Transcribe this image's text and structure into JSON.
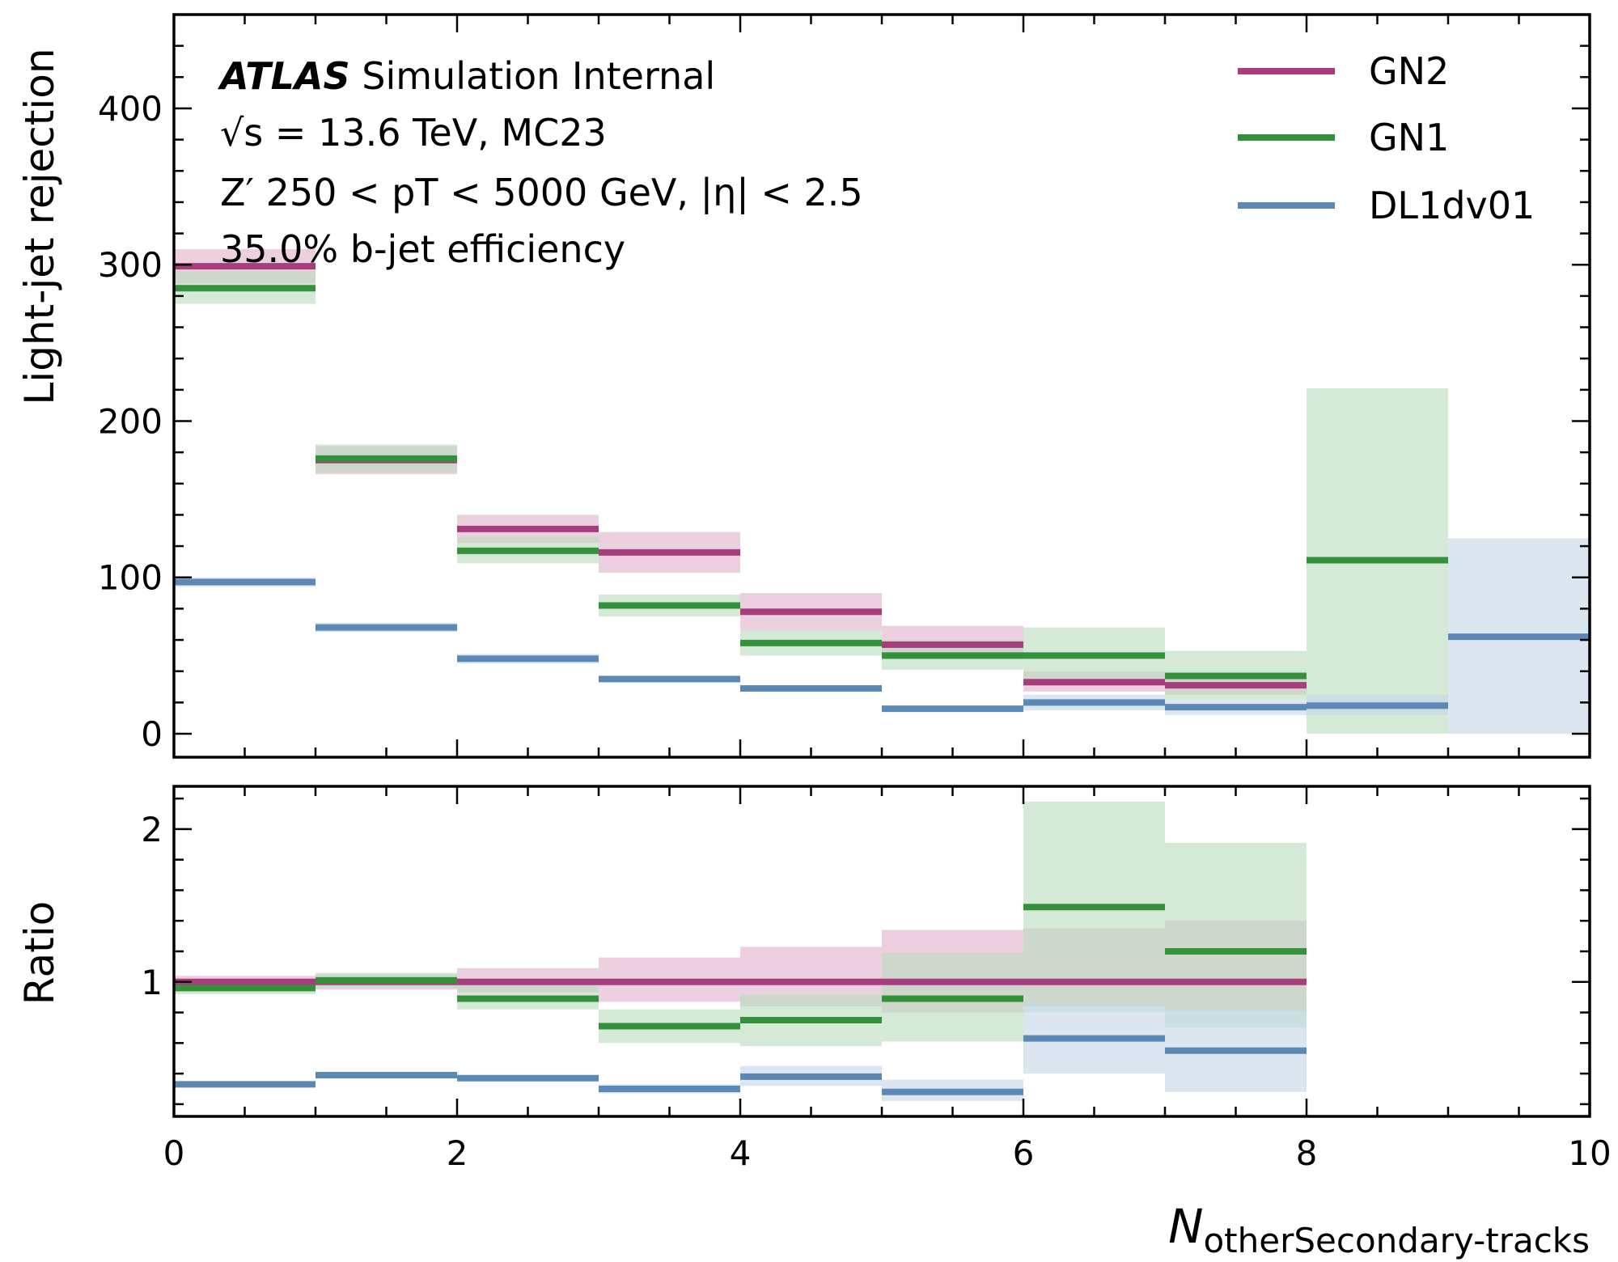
{
  "chart_data": {
    "type": "histogram-step",
    "bin_edges": [
      0,
      1,
      2,
      3,
      4,
      5,
      6,
      7,
      8,
      9,
      10
    ],
    "xlim": [
      0,
      10
    ],
    "x_ticks": [
      0,
      2,
      4,
      6,
      8,
      10
    ],
    "x_tick_labels": [
      "0",
      "2",
      "4",
      "6",
      "8",
      "10"
    ],
    "xlabel_main": "N",
    "xlabel_sub": "otherSecondary-tracks",
    "info": {
      "atlas": "ATLAS",
      "status": " Simulation Internal",
      "line2": "√s = 13.6 TeV, MC23",
      "line3": "Z′ 250 < pT < 5000 GeV, |η| < 2.5",
      "line4": "35.0% b-jet efficiency"
    },
    "legend_position": "top-right",
    "series": [
      {
        "name": "GN2",
        "color": "#a83d7d",
        "band_color": "#e2b3cd",
        "values": [
          299,
          175,
          131,
          116,
          78,
          57,
          33,
          31,
          null,
          null
        ],
        "band_low": [
          288,
          166,
          122,
          103,
          66,
          48,
          27,
          25,
          null,
          null
        ],
        "band_high": [
          310,
          184,
          140,
          129,
          90,
          69,
          40,
          38,
          null,
          null
        ],
        "ratio": [
          1.0,
          1.0,
          1.0,
          1.0,
          1.0,
          1.0,
          1.0,
          1.0,
          null,
          null
        ],
        "ratio_low": [
          0.96,
          0.95,
          0.93,
          0.87,
          0.84,
          0.8,
          0.84,
          0.81,
          null,
          null
        ],
        "ratio_high": [
          1.04,
          1.05,
          1.09,
          1.16,
          1.23,
          1.34,
          1.35,
          1.4,
          null,
          null
        ]
      },
      {
        "name": "GN1",
        "color": "#35903b",
        "band_color": "#bcdcbe",
        "values": [
          285,
          176,
          117,
          82,
          58,
          50,
          50,
          37,
          111,
          null
        ],
        "band_low": [
          275,
          167,
          109,
          75,
          50,
          41,
          32,
          22,
          0,
          null
        ],
        "band_high": [
          296,
          185,
          126,
          89,
          66,
          60,
          68,
          53,
          221,
          null
        ],
        "ratio": [
          0.96,
          1.01,
          0.89,
          0.71,
          0.75,
          0.89,
          1.49,
          1.2,
          null,
          null
        ],
        "ratio_low": [
          0.92,
          0.96,
          0.82,
          0.6,
          0.58,
          0.61,
          0.8,
          0.7,
          null,
          null
        ],
        "ratio_high": [
          1.0,
          1.06,
          0.98,
          0.82,
          0.92,
          1.19,
          2.18,
          1.91,
          null,
          null
        ]
      },
      {
        "name": "DL1dv01",
        "color": "#5b88b5",
        "band_color": "#c5d6e8",
        "values": [
          97,
          68,
          48,
          35,
          29,
          16,
          20,
          17,
          18,
          62
        ],
        "band_low": [
          94,
          65,
          45,
          33,
          27,
          14,
          15,
          12,
          12,
          0
        ],
        "band_high": [
          100,
          71,
          51,
          37,
          31,
          18,
          25,
          22,
          25,
          125
        ],
        "ratio": [
          0.33,
          0.39,
          0.37,
          0.3,
          0.38,
          0.28,
          0.63,
          0.55,
          null,
          null
        ],
        "ratio_low": [
          0.31,
          0.37,
          0.35,
          0.27,
          0.32,
          0.22,
          0.4,
          0.28,
          null,
          null
        ],
        "ratio_high": [
          0.35,
          0.41,
          0.39,
          0.33,
          0.45,
          0.36,
          0.86,
          0.82,
          null,
          null
        ]
      }
    ],
    "panels": [
      {
        "name": "main",
        "ylabel": "Light-jet rejection",
        "ylim": [
          -15,
          460
        ],
        "y_ticks": [
          0,
          100,
          200,
          300,
          400
        ],
        "y_tick_labels": [
          "0",
          "100",
          "200",
          "300",
          "400"
        ]
      },
      {
        "name": "ratio",
        "ylabel": "Ratio",
        "ylim": [
          0.12,
          2.28
        ],
        "y_ticks": [
          1,
          2
        ],
        "y_tick_labels": [
          "1",
          "2"
        ]
      }
    ]
  }
}
